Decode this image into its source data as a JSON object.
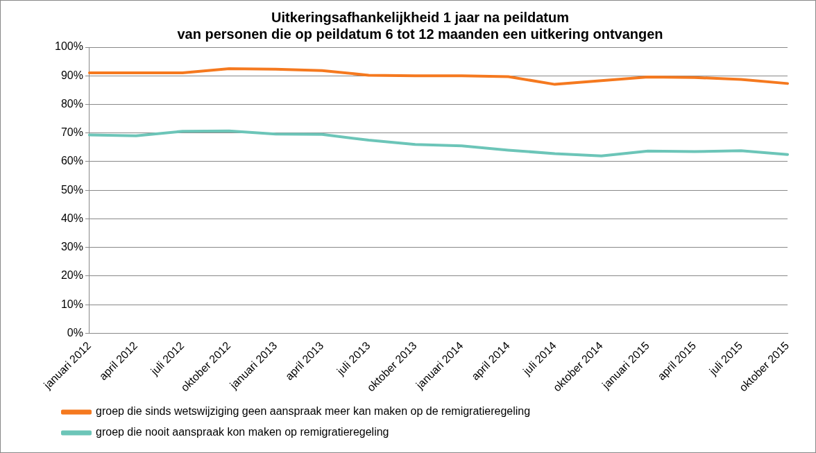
{
  "chart_data": {
    "type": "line",
    "title": "Uitkeringsafhankelijkheid 1 jaar na peildatum\nvan personen die op peildatum 6 tot 12 maanden een uitkering ontvangen",
    "categories": [
      "januari 2012",
      "april 2012",
      "juli 2012",
      "oktober 2012",
      "januari 2013",
      "april 2013",
      "juli 2013",
      "oktober 2013",
      "januari 2014",
      "april 2014",
      "juli 2014",
      "oktober 2014",
      "januari 2015",
      "april 2015",
      "juli 2015",
      "oktober 2015"
    ],
    "series": [
      {
        "name": "groep die sinds wetswijziging geen aanspraak meer kan maken op de remigratieregeling",
        "color": "#f5791f",
        "values": [
          91,
          91,
          91,
          92.5,
          92.3,
          91.8,
          90.2,
          90,
          90,
          89.7,
          87,
          88.3,
          89.6,
          89.4,
          88.7,
          87.3
        ]
      },
      {
        "name": "groep die nooit aanspraak kon maken op remigratieregeling",
        "color": "#6cc5b8",
        "values": [
          69.3,
          69,
          70.6,
          70.7,
          69.6,
          69.5,
          67.5,
          66,
          65.5,
          64,
          62.8,
          62,
          63.7,
          63.5,
          63.8,
          62.5
        ]
      }
    ],
    "ylim": [
      0,
      100
    ],
    "yticks": [
      {
        "value": 0,
        "label": "0%"
      },
      {
        "value": 10,
        "label": "10%"
      },
      {
        "value": 20,
        "label": "20%"
      },
      {
        "value": 30,
        "label": "30%"
      },
      {
        "value": 40,
        "label": "40%"
      },
      {
        "value": 50,
        "label": "50%"
      },
      {
        "value": 60,
        "label": "60%"
      },
      {
        "value": 70,
        "label": "70%"
      },
      {
        "value": 80,
        "label": "80%"
      },
      {
        "value": 90,
        "label": "90%"
      },
      {
        "value": 100,
        "label": "100%"
      }
    ],
    "grid": "y",
    "legend": "bottom",
    "marker": "none",
    "line_style": "solid"
  }
}
